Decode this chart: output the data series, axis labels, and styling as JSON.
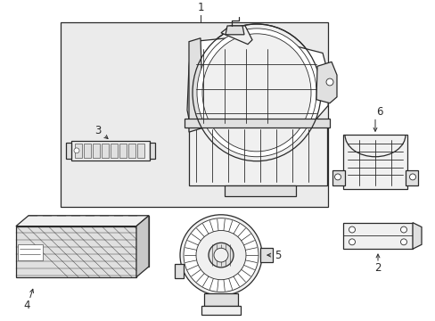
{
  "bg_color": "#ffffff",
  "line_color": "#2a2a2a",
  "fill_white": "#ffffff",
  "fill_light": "#f0f0f0",
  "fill_med": "#e0e0e0",
  "fill_dark": "#c8c8c8",
  "fill_box": "#ebebeb",
  "fig_width": 4.89,
  "fig_height": 3.6,
  "dpi": 100,
  "labels": [
    "1",
    "2",
    "3",
    "4",
    "5",
    "6"
  ],
  "font_size": 8.5
}
